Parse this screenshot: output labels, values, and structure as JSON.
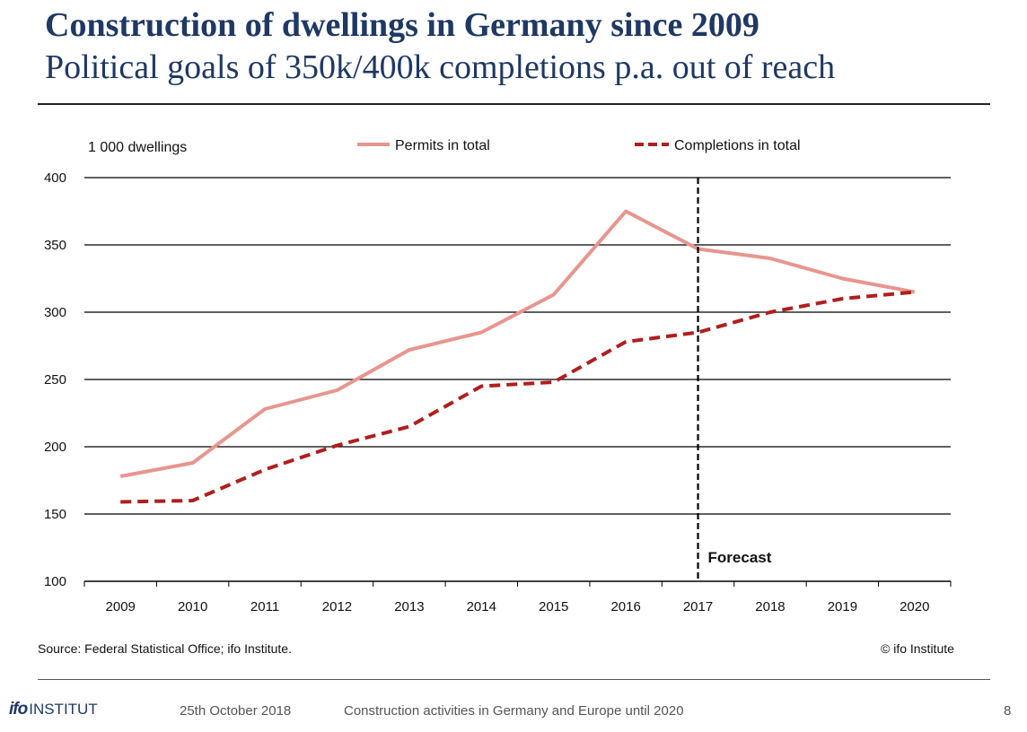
{
  "slide": {
    "title": "Construction of dwellings in Germany since 2009",
    "subtitle": "Political goals of 350k/400k completions p.a. out of reach"
  },
  "chart_data": {
    "type": "line",
    "ylabel": "1 000 dwellings",
    "x": [
      "2009",
      "2010",
      "2011",
      "2012",
      "2013",
      "2014",
      "2015",
      "2016",
      "2017",
      "2018",
      "2019",
      "2020"
    ],
    "ylim": [
      100,
      400
    ],
    "yticks": [
      "400",
      "350",
      "300",
      "250",
      "200",
      "150",
      "100"
    ],
    "grid": true,
    "legend_position": "top",
    "series": [
      {
        "name": "Permits in total",
        "values": [
          178,
          188,
          228,
          242,
          272,
          285,
          313,
          375,
          347,
          340,
          325,
          315
        ],
        "color": "#e8958f",
        "style": "solid"
      },
      {
        "name": "Completions in total",
        "values": [
          159,
          160,
          183,
          201,
          215,
          245,
          248,
          278,
          285,
          300,
          310,
          315
        ],
        "color": "#b01e1e",
        "style": "dashed"
      }
    ],
    "annotation": {
      "label": "Forecast",
      "at_x": "2017"
    }
  },
  "source": "Source: Federal Statistical Office; ifo Institute.",
  "copyright": "© ifo Institute",
  "footer": {
    "logo_ifo": "ifo",
    "logo_institut": "INSTITUT",
    "date": "25th October 2018",
    "topic": "Construction activities in Germany and Europe until 2020",
    "page": "8"
  }
}
